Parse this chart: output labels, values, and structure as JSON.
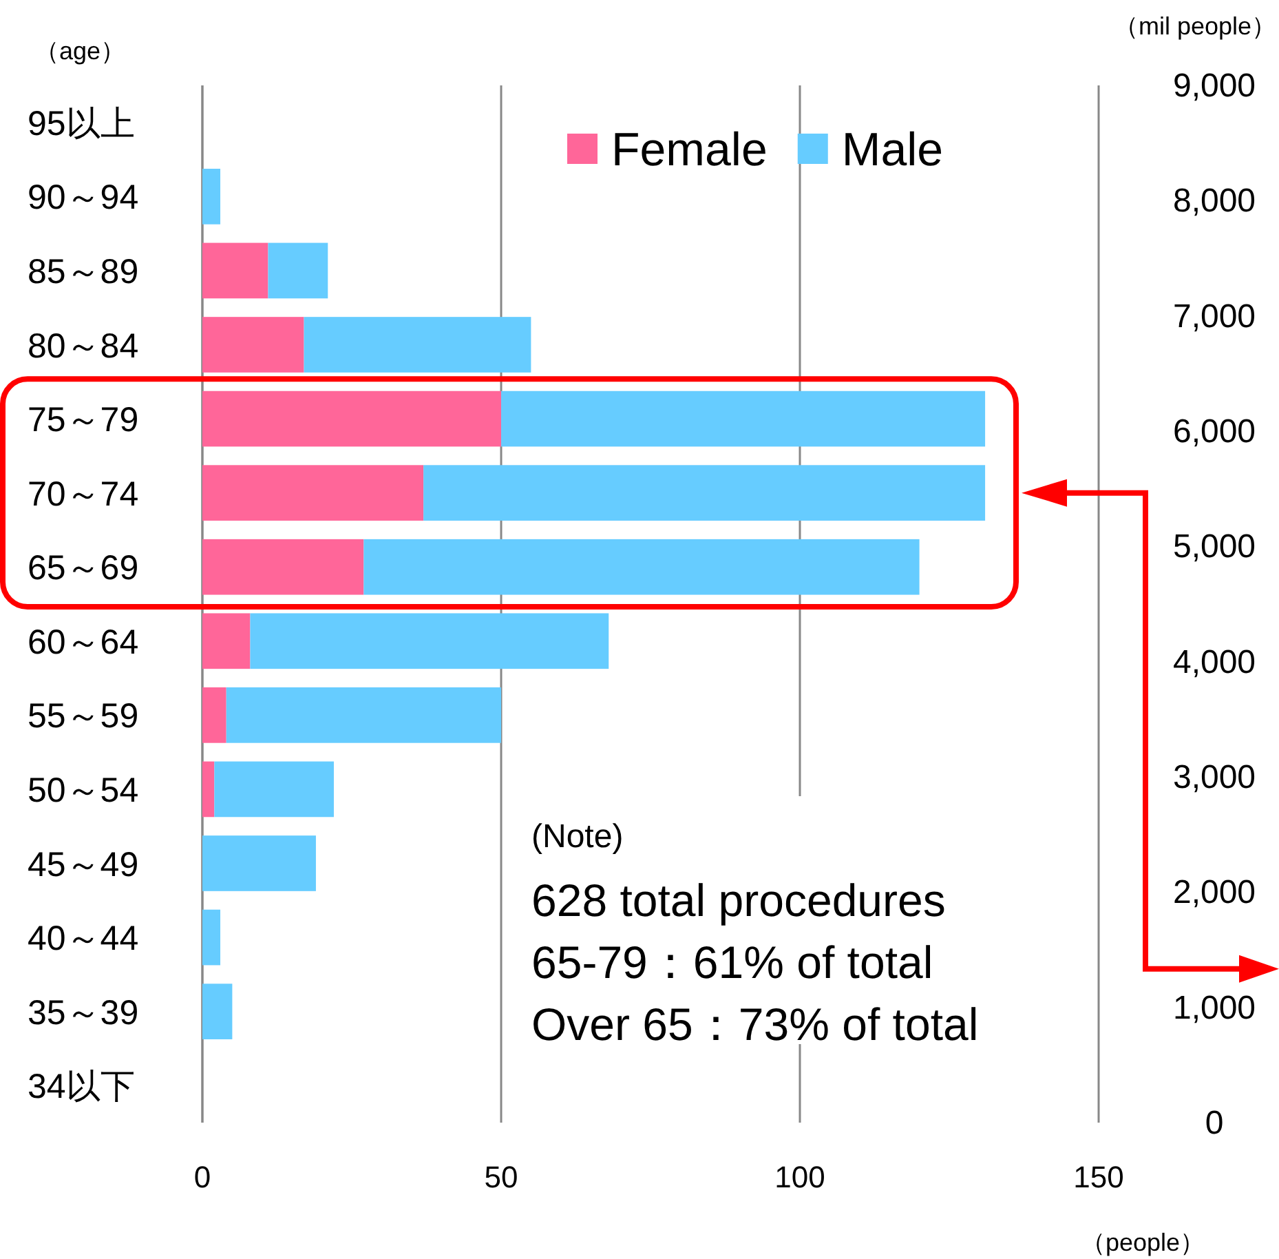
{
  "chart_data": {
    "type": "bar",
    "orientation": "horizontal",
    "stacked": true,
    "categories": [
      "95以上",
      "90～94",
      "85～89",
      "80～84",
      "75～79",
      "70～74",
      "65～69",
      "60～64",
      "55～59",
      "50～54",
      "45～49",
      "40～44",
      "35～39",
      "34以下"
    ],
    "series": [
      {
        "name": "Female",
        "color": "#ff6699",
        "values": [
          0,
          0,
          11,
          17,
          50,
          37,
          27,
          8,
          4,
          2,
          0,
          0,
          0,
          0
        ]
      },
      {
        "name": "Male",
        "color": "#66ccff",
        "values": [
          0,
          3,
          10,
          38,
          81,
          94,
          93,
          60,
          46,
          20,
          19,
          3,
          5,
          0
        ]
      }
    ],
    "xlim": [
      0,
      150
    ],
    "xticks": [
      0,
      50,
      100,
      150
    ],
    "y2lim": [
      0,
      9000
    ],
    "y2ticks": [
      {
        "value": 0,
        "label": "0"
      },
      {
        "value": 1000,
        "label": "1,000"
      },
      {
        "value": 2000,
        "label": "2,000"
      },
      {
        "value": 3000,
        "label": "3,000"
      },
      {
        "value": 4000,
        "label": "4,000"
      },
      {
        "value": 5000,
        "label": "5,000"
      },
      {
        "value": 6000,
        "label": "6,000"
      },
      {
        "value": 7000,
        "label": "7,000"
      },
      {
        "value": 8000,
        "label": "8,000"
      },
      {
        "value": 9000,
        "label": "9,000"
      }
    ],
    "xlabel": "（people）",
    "ylabel": "（age）",
    "y2label": "（mil people）",
    "annotations": [
      "(Note)",
      "628 total procedures",
      "65-79：61% of total",
      "Over 65：73% of total"
    ],
    "legend": "top right",
    "grid": "x"
  }
}
